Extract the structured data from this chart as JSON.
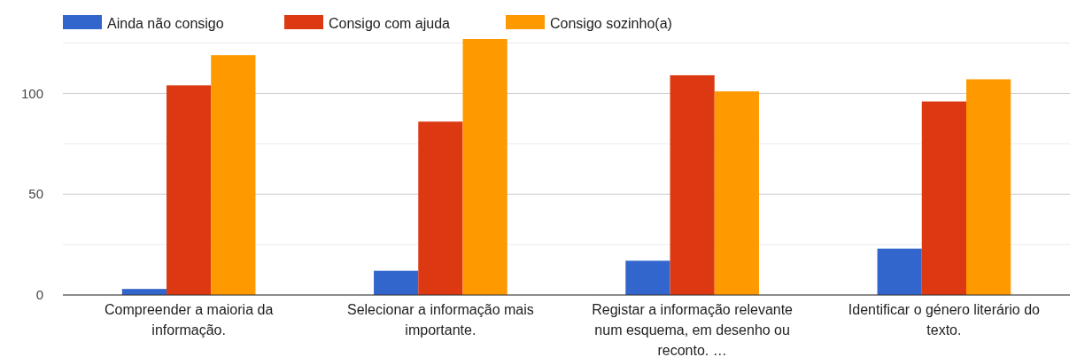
{
  "chart_data": {
    "type": "bar",
    "categories": [
      "Compreender a maioria da informação.",
      "Selecionar a informação mais importante.",
      "Registar a informação relevante num esquema, em desenho ou reconto. …",
      "Identificar o género literário do texto."
    ],
    "series": [
      {
        "name": "Ainda não consigo",
        "color": "#3366cc",
        "values": [
          3,
          12,
          17,
          23
        ]
      },
      {
        "name": "Consigo com ajuda",
        "color": "#dc3912",
        "values": [
          104,
          86,
          109,
          96
        ]
      },
      {
        "name": "Consigo sozinho(a)",
        "color": "#ff9900",
        "values": [
          119,
          127,
          101,
          107
        ]
      }
    ],
    "ylim": [
      0,
      127
    ],
    "yticks": [
      0,
      {
        "value": 25,
        "label": null
      },
      50,
      {
        "value": 75,
        "label": null
      },
      100,
      {
        "value": 125,
        "label": null
      }
    ],
    "grid": true,
    "legend": "top left"
  }
}
